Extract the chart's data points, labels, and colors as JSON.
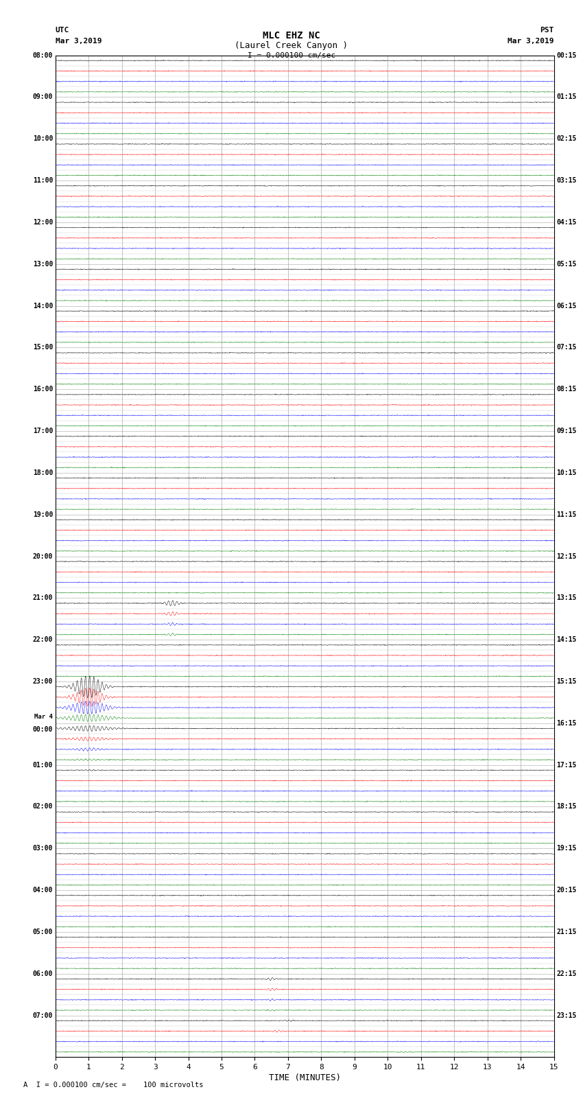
{
  "title_line1": "MLC EHZ NC",
  "title_line2": "(Laurel Creek Canyon )",
  "scale_text": "I = 0.000100 cm/sec",
  "footer_text": "A  I = 0.000100 cm/sec =    100 microvolts",
  "utc_label": "UTC",
  "utc_date": "Mar 3,2019",
  "pst_label": "PST",
  "pst_date": "Mar 3,2019",
  "xlabel": "TIME (MINUTES)",
  "n_traces": 96,
  "xmin": 0,
  "xmax": 15,
  "xticks": [
    0,
    1,
    2,
    3,
    4,
    5,
    6,
    7,
    8,
    9,
    10,
    11,
    12,
    13,
    14,
    15
  ],
  "colors_cycle": [
    "black",
    "red",
    "blue",
    "green"
  ],
  "bg_color": "white",
  "grid_color": "#888888",
  "noise_amplitude": 0.018,
  "utc_times_left": [
    "08:00",
    "09:00",
    "10:00",
    "11:00",
    "12:00",
    "13:00",
    "14:00",
    "15:00",
    "16:00",
    "17:00",
    "18:00",
    "19:00",
    "20:00",
    "21:00",
    "22:00",
    "23:00",
    "Mar 4\n00:00",
    "01:00",
    "02:00",
    "03:00",
    "04:00",
    "05:00",
    "06:00",
    "07:00"
  ],
  "pst_times_right": [
    "00:15",
    "01:15",
    "02:15",
    "03:15",
    "04:15",
    "05:15",
    "06:15",
    "07:15",
    "08:15",
    "09:15",
    "10:15",
    "11:15",
    "12:15",
    "13:15",
    "14:15",
    "15:15",
    "16:15",
    "17:15",
    "18:15",
    "19:15",
    "20:15",
    "21:15",
    "22:15",
    "23:15"
  ],
  "special_events": [
    {
      "trace": 28,
      "minute": 14.8,
      "amplitude": 3.0,
      "sigma": 0.08
    },
    {
      "trace": 29,
      "minute": 0.0,
      "amplitude": 2.0,
      "sigma": 0.05
    },
    {
      "trace": 52,
      "minute": 3.5,
      "amplitude": 15.0,
      "sigma": 0.15
    },
    {
      "trace": 53,
      "minute": 3.5,
      "amplitude": 10.0,
      "sigma": 0.15
    },
    {
      "trace": 54,
      "minute": 3.5,
      "amplitude": 8.0,
      "sigma": 0.12
    },
    {
      "trace": 55,
      "minute": 3.5,
      "amplitude": 6.0,
      "sigma": 0.12
    },
    {
      "trace": 60,
      "minute": 1.0,
      "amplitude": 60.0,
      "sigma": 0.3
    },
    {
      "trace": 61,
      "minute": 1.0,
      "amplitude": 50.0,
      "sigma": 0.3
    },
    {
      "trace": 62,
      "minute": 1.0,
      "amplitude": 35.0,
      "sigma": 0.4
    },
    {
      "trace": 63,
      "minute": 1.0,
      "amplitude": 20.0,
      "sigma": 0.5
    },
    {
      "trace": 64,
      "minute": 1.0,
      "amplitude": 15.0,
      "sigma": 0.5
    },
    {
      "trace": 65,
      "minute": 1.0,
      "amplitude": 10.0,
      "sigma": 0.4
    },
    {
      "trace": 66,
      "minute": 1.0,
      "amplitude": 8.0,
      "sigma": 0.3
    },
    {
      "trace": 67,
      "minute": 1.0,
      "amplitude": 5.0,
      "sigma": 0.25
    },
    {
      "trace": 68,
      "minute": 1.0,
      "amplitude": 3.0,
      "sigma": 0.2
    },
    {
      "trace": 88,
      "minute": 6.5,
      "amplitude": 8.0,
      "sigma": 0.12
    },
    {
      "trace": 89,
      "minute": 6.5,
      "amplitude": 6.0,
      "sigma": 0.12
    },
    {
      "trace": 90,
      "minute": 6.5,
      "amplitude": 5.0,
      "sigma": 0.1
    },
    {
      "trace": 91,
      "minute": 6.5,
      "amplitude": 4.0,
      "sigma": 0.1
    },
    {
      "trace": 92,
      "minute": 7.0,
      "amplitude": 3.5,
      "sigma": 0.1
    },
    {
      "trace": 93,
      "minute": 6.7,
      "amplitude": 5.0,
      "sigma": 0.12
    },
    {
      "trace": 94,
      "minute": 14.5,
      "amplitude": 2.0,
      "sigma": 0.08
    },
    {
      "trace": 95,
      "minute": 10.5,
      "amplitude": 2.0,
      "sigma": 0.1
    }
  ]
}
